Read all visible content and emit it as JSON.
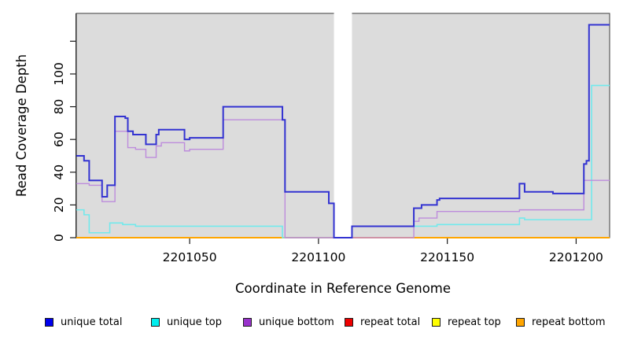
{
  "chart_data": {
    "type": "line",
    "subtype": "step",
    "title": "",
    "xlabel": "Coordinate in Reference Genome",
    "ylabel": "Read Coverage Depth",
    "xlim": [
      2201006,
      2201213
    ],
    "ylim": [
      0,
      137
    ],
    "grid": false,
    "plot_background": "#dcdcdc",
    "page_background": "#ffffff",
    "axis_color": "#1a1a1a",
    "box_color": "#3c3c3c",
    "gap_region": {
      "x_start": 2201106,
      "x_end": 2201113,
      "fill": "#ffffff"
    },
    "x_ticks": [
      {
        "value": 2201050,
        "label": "2201050"
      },
      {
        "value": 2201100,
        "label": "2201100"
      },
      {
        "value": 2201150,
        "label": "2201150"
      },
      {
        "value": 2201200,
        "label": "2201200"
      }
    ],
    "y_ticks": [
      {
        "value": 0,
        "label": "0"
      },
      {
        "value": 20,
        "label": "20"
      },
      {
        "value": 40,
        "label": "40"
      },
      {
        "value": 60,
        "label": "60"
      },
      {
        "value": 80,
        "label": "80"
      },
      {
        "value": 100,
        "label": "100"
      },
      {
        "value": 120,
        "label": ""
      }
    ],
    "series": [
      {
        "name": "repeat total",
        "color": "#ee0000",
        "width": 1.2,
        "points": [
          [
            2201006,
            0
          ]
        ]
      },
      {
        "name": "repeat top",
        "color": "#ffff00",
        "width": 1.2,
        "points": [
          [
            2201006,
            0
          ]
        ]
      },
      {
        "name": "repeat bottom",
        "color": "#ffa500",
        "width": 2,
        "points": [
          [
            2201006,
            0
          ]
        ]
      },
      {
        "name": "unique top",
        "color": "#72e9ec",
        "width": 1.6,
        "points": [
          [
            2201006,
            17
          ],
          [
            2201009,
            14
          ],
          [
            2201011,
            3
          ],
          [
            2201019,
            9
          ],
          [
            2201024,
            8
          ],
          [
            2201029,
            7
          ],
          [
            2201086,
            0
          ],
          [
            2201113,
            7
          ],
          [
            2201146,
            8
          ],
          [
            2201178,
            12
          ],
          [
            2201180,
            11
          ],
          [
            2201206,
            93
          ]
        ]
      },
      {
        "name": "unique bottom",
        "color": "#bd8cdc",
        "width": 1.4,
        "points": [
          [
            2201006,
            33
          ],
          [
            2201011,
            32
          ],
          [
            2201016,
            22
          ],
          [
            2201021,
            65
          ],
          [
            2201026,
            55
          ],
          [
            2201029,
            54
          ],
          [
            2201033,
            49
          ],
          [
            2201037,
            56
          ],
          [
            2201039,
            58
          ],
          [
            2201048,
            53
          ],
          [
            2201050,
            54
          ],
          [
            2201063,
            72
          ],
          [
            2201087,
            0
          ],
          [
            2201137,
            10
          ],
          [
            2201139,
            12
          ],
          [
            2201146,
            16
          ],
          [
            2201178,
            17
          ],
          [
            2201203,
            35
          ]
        ]
      },
      {
        "name": "unique total",
        "color": "#3333d1",
        "width": 2,
        "points": [
          [
            2201006,
            50
          ],
          [
            2201009,
            47
          ],
          [
            2201011,
            35
          ],
          [
            2201016,
            25
          ],
          [
            2201018,
            32
          ],
          [
            2201021,
            74
          ],
          [
            2201025,
            73
          ],
          [
            2201026,
            65
          ],
          [
            2201028,
            63
          ],
          [
            2201033,
            57
          ],
          [
            2201037,
            63
          ],
          [
            2201038,
            66
          ],
          [
            2201048,
            60
          ],
          [
            2201050,
            61
          ],
          [
            2201063,
            80
          ],
          [
            2201086,
            72
          ],
          [
            2201087,
            28
          ],
          [
            2201104,
            21
          ],
          [
            2201106,
            0
          ],
          [
            2201113,
            7
          ],
          [
            2201137,
            18
          ],
          [
            2201140,
            20
          ],
          [
            2201146,
            23
          ],
          [
            2201147,
            24
          ],
          [
            2201178,
            33
          ],
          [
            2201180,
            28
          ],
          [
            2201191,
            27
          ],
          [
            2201203,
            45
          ],
          [
            2201204,
            47
          ],
          [
            2201205,
            130
          ]
        ]
      }
    ],
    "legend_position": "bottom"
  },
  "legend": {
    "items": [
      {
        "label": "unique total",
        "color": "#0000ee"
      },
      {
        "label": "unique top",
        "color": "#00eeee"
      },
      {
        "label": "unique bottom",
        "color": "#9932cc"
      },
      {
        "label": "repeat total",
        "color": "#ee0000"
      },
      {
        "label": "repeat top",
        "color": "#ffff00"
      },
      {
        "label": "repeat bottom",
        "color": "#ffa500"
      }
    ]
  }
}
